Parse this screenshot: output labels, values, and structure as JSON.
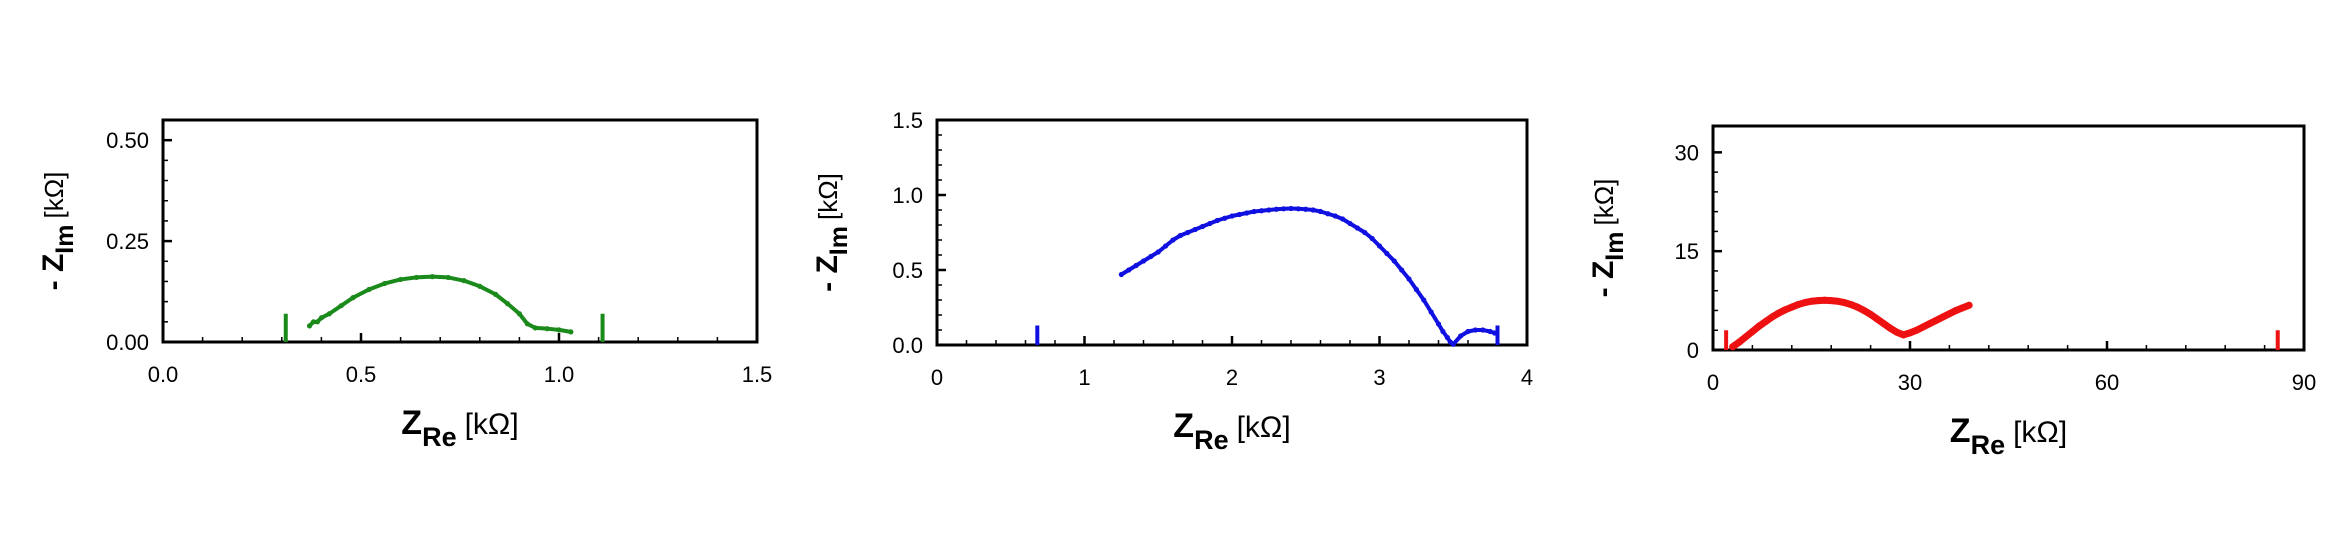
{
  "chart_data": [
    {
      "type": "scatter",
      "xlabel_main": "Z",
      "xlabel_sub": "Re",
      "xlabel_unit": "[kΩ]",
      "ylabel_prefix": "- Z",
      "ylabel_sub": "Im",
      "ylabel_unit": "[kΩ]",
      "xlim": [
        0,
        1.5
      ],
      "ylim": [
        0,
        0.55
      ],
      "xticks": [
        "0.0",
        "0.5",
        "1.0",
        "1.5"
      ],
      "xtick_values": [
        0,
        0.5,
        1.0,
        1.5
      ],
      "yticks": [
        "0.00",
        "0.25",
        "0.50"
      ],
      "ytick_values": [
        0,
        0.25,
        0.5
      ],
      "grid": false,
      "series": [
        {
          "color": "#1a8a1a",
          "x": [
            0.37,
            0.38,
            0.39,
            0.4,
            0.42,
            0.45,
            0.48,
            0.52,
            0.56,
            0.6,
            0.64,
            0.68,
            0.72,
            0.76,
            0.8,
            0.84,
            0.87,
            0.9,
            0.92,
            0.94,
            0.97,
            1.0,
            1.03
          ],
          "y": [
            0.04,
            0.05,
            0.05,
            0.06,
            0.07,
            0.09,
            0.11,
            0.13,
            0.145,
            0.155,
            0.16,
            0.162,
            0.16,
            0.152,
            0.138,
            0.118,
            0.095,
            0.07,
            0.045,
            0.035,
            0.033,
            0.03,
            0.025
          ]
        }
      ],
      "markers": [
        {
          "x": 0.31,
          "y0": 0,
          "y1": 0.07,
          "color": "#1a8a1a"
        },
        {
          "x": 1.11,
          "y0": 0,
          "y1": 0.07,
          "color": "#1a8a1a"
        }
      ]
    },
    {
      "type": "scatter",
      "xlabel_main": "Z",
      "xlabel_sub": "Re",
      "xlabel_unit": "[kΩ]",
      "ylabel_prefix": "- Z",
      "ylabel_sub": "Im",
      "ylabel_unit": "[kΩ]",
      "xlim": [
        0,
        4
      ],
      "ylim": [
        0,
        1.5
      ],
      "xticks": [
        "0",
        "1",
        "2",
        "3",
        "4"
      ],
      "xtick_values": [
        0,
        1,
        2,
        3,
        4
      ],
      "yticks": [
        "0.0",
        "0.5",
        "1.0",
        "1.5"
      ],
      "ytick_values": [
        0,
        0.5,
        1.0,
        1.5
      ],
      "grid": false,
      "series": [
        {
          "color": "#1010e0",
          "x": [
            1.25,
            1.3,
            1.35,
            1.4,
            1.45,
            1.5,
            1.55,
            1.6,
            1.65,
            1.7,
            1.75,
            1.8,
            1.85,
            1.9,
            1.95,
            2.0,
            2.05,
            2.1,
            2.15,
            2.2,
            2.25,
            2.3,
            2.35,
            2.4,
            2.45,
            2.5,
            2.55,
            2.6,
            2.65,
            2.7,
            2.75,
            2.8,
            2.85,
            2.9,
            2.95,
            3.0,
            3.05,
            3.1,
            3.15,
            3.2,
            3.25,
            3.3,
            3.35,
            3.4,
            3.43,
            3.46,
            3.48,
            3.5,
            3.55,
            3.6,
            3.65,
            3.7,
            3.75,
            3.78
          ],
          "y": [
            0.47,
            0.5,
            0.53,
            0.56,
            0.59,
            0.62,
            0.66,
            0.7,
            0.73,
            0.75,
            0.77,
            0.79,
            0.81,
            0.83,
            0.845,
            0.86,
            0.87,
            0.88,
            0.89,
            0.895,
            0.9,
            0.905,
            0.908,
            0.91,
            0.908,
            0.905,
            0.9,
            0.89,
            0.875,
            0.86,
            0.84,
            0.81,
            0.78,
            0.75,
            0.71,
            0.66,
            0.61,
            0.56,
            0.5,
            0.44,
            0.37,
            0.3,
            0.22,
            0.14,
            0.09,
            0.05,
            0.02,
            0.005,
            0.06,
            0.09,
            0.1,
            0.1,
            0.09,
            0.08
          ]
        }
      ],
      "markers": [
        {
          "x": 0.68,
          "y0": 0,
          "y1": 0.13,
          "color": "#1010e0"
        },
        {
          "x": 3.8,
          "y0": 0,
          "y1": 0.13,
          "color": "#1010e0"
        }
      ]
    },
    {
      "type": "scatter",
      "xlabel_main": "Z",
      "xlabel_sub": "Re",
      "xlabel_unit": "[kΩ]",
      "ylabel_prefix": "- Z",
      "ylabel_sub": "Im",
      "ylabel_unit": "[kΩ]",
      "xlim": [
        0,
        90
      ],
      "ylim": [
        0,
        34
      ],
      "xticks": [
        "0",
        "30",
        "60",
        "90"
      ],
      "xtick_values": [
        0,
        30,
        60,
        90
      ],
      "yticks": [
        "0",
        "15",
        "30"
      ],
      "ytick_values": [
        0,
        15,
        30
      ],
      "grid": false,
      "series": [
        {
          "color": "#ee1111",
          "x": [
            3,
            4,
            5,
            6,
            7,
            8,
            9,
            10,
            11,
            12,
            13,
            14,
            15,
            16,
            17,
            18,
            19,
            20,
            21,
            22,
            23,
            24,
            25,
            26,
            27,
            28,
            29,
            30,
            31,
            32,
            33,
            34,
            35,
            36,
            37,
            38,
            39
          ],
          "y": [
            0.5,
            1.2,
            2.0,
            2.8,
            3.6,
            4.3,
            5.0,
            5.6,
            6.1,
            6.5,
            6.9,
            7.2,
            7.4,
            7.5,
            7.55,
            7.5,
            7.4,
            7.2,
            6.9,
            6.5,
            6.0,
            5.4,
            4.7,
            4.0,
            3.3,
            2.7,
            2.3,
            2.6,
            3.0,
            3.5,
            4.0,
            4.5,
            5.0,
            5.5,
            6.0,
            6.4,
            6.8
          ]
        }
      ],
      "markers": [
        {
          "x": 2,
          "y0": 0,
          "y1": 3,
          "color": "#ee1111"
        },
        {
          "x": 86,
          "y0": 0,
          "y1": 3,
          "color": "#ee1111"
        }
      ]
    }
  ]
}
